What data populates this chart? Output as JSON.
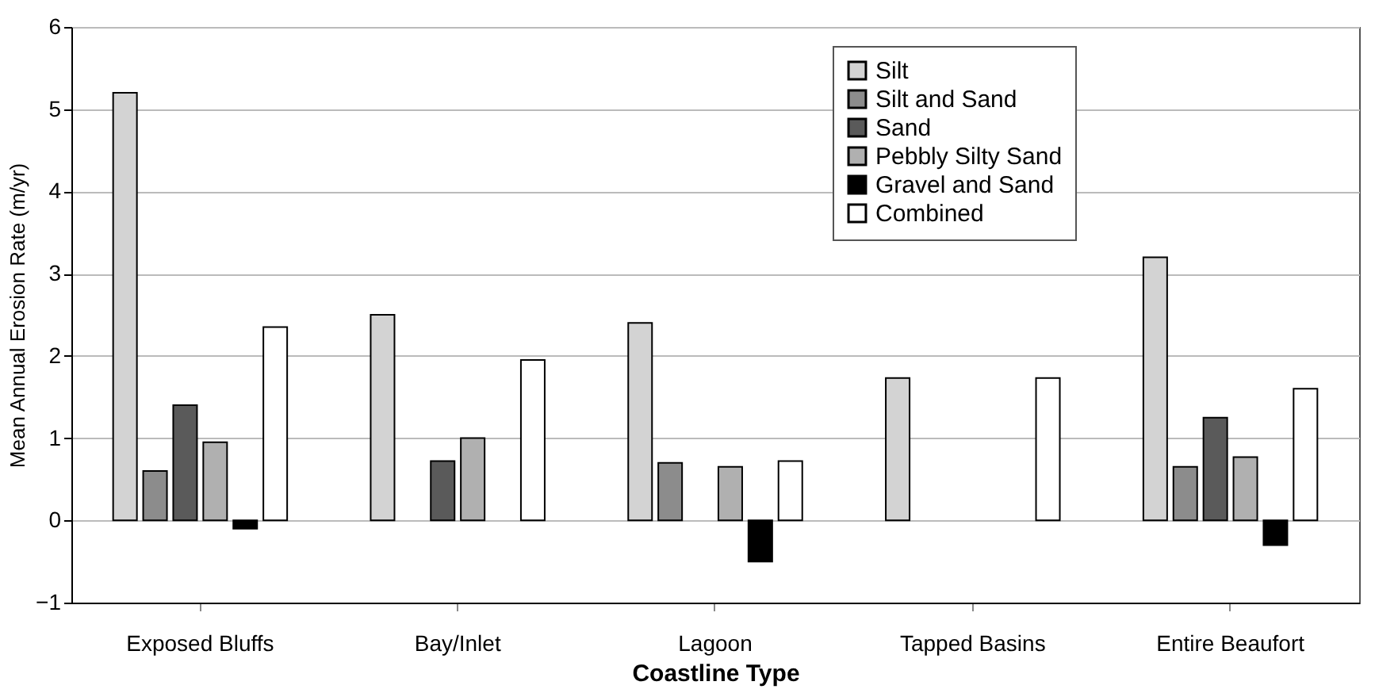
{
  "chart_data": {
    "type": "bar",
    "xlabel": "Coastline Type",
    "ylabel": "Mean Annual Erosion Rate (m/yr)",
    "categories": [
      "Exposed Bluffs",
      "Bay/Inlet",
      "Lagoon",
      "Tapped Basins",
      "Entire Beaufort"
    ],
    "series": [
      {
        "name": "Silt",
        "color": "#d3d3d3",
        "values": [
          5.2,
          2.5,
          2.4,
          1.73,
          3.2
        ]
      },
      {
        "name": "Silt and Sand",
        "color": "#8c8c8c",
        "values": [
          0.6,
          null,
          0.7,
          null,
          0.65
        ]
      },
      {
        "name": "Sand",
        "color": "#5a5a5a",
        "values": [
          1.4,
          0.72,
          null,
          null,
          1.25
        ]
      },
      {
        "name": "Pebbly Silty Sand",
        "color": "#b0b0b0",
        "values": [
          0.95,
          1.0,
          0.65,
          null,
          0.77
        ]
      },
      {
        "name": "Gravel and Sand",
        "color": "#000000",
        "values": [
          -0.1,
          null,
          -0.5,
          null,
          -0.3
        ]
      },
      {
        "name": "Combined",
        "color": "#ffffff",
        "values": [
          2.35,
          1.95,
          0.72,
          1.73,
          1.6
        ]
      }
    ],
    "ylim": [
      -1,
      6
    ],
    "yticks": [
      -1,
      0,
      1,
      2,
      3,
      4,
      5,
      6
    ],
    "grid": "y",
    "legend": "top"
  }
}
